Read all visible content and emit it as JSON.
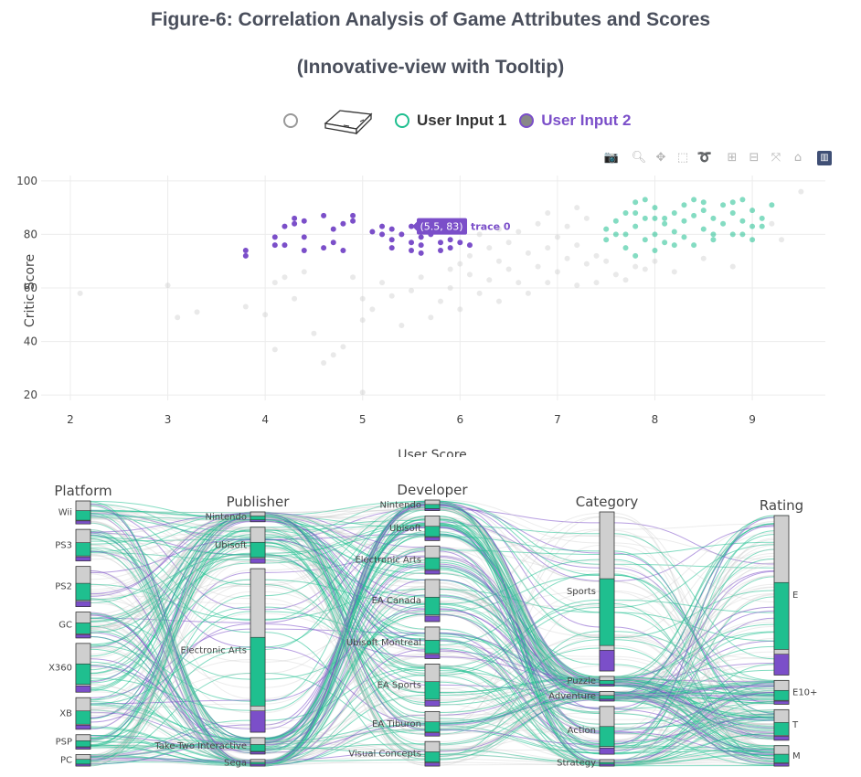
{
  "title_line1": "Figure-6: Correlation Analysis of Game Attributes and Scores",
  "title_line2": "(Innovative-view with Tooltip)",
  "legend": {
    "items": [
      {
        "label": "",
        "icon": "empty-circle-icon",
        "color": "#999999"
      },
      {
        "label": "",
        "icon": "eraser-icon",
        "color": "#444444"
      },
      {
        "label": "User Input 1",
        "icon": "teal-circle-icon",
        "color": "#1fbf8f"
      },
      {
        "label": "User Input 2",
        "icon": "purple-circle-icon",
        "color": "#7b4fc9"
      }
    ]
  },
  "toolbar": {
    "icons": [
      "camera-icon",
      "zoom-icon",
      "pan-icon",
      "box-select-icon",
      "lasso-select-icon",
      "zoom-in-icon",
      "zoom-out-icon",
      "autoscale-icon",
      "reset-axes-icon",
      "plotly-logo-icon"
    ]
  },
  "colors": {
    "teal": "#1fbf8f",
    "purple": "#7b4fc9",
    "gray": "#cfcfcf"
  },
  "tooltip": {
    "text": "(5.5, 83)",
    "trace": "trace 0"
  },
  "chart_data": [
    {
      "type": "scatter",
      "xlabel": "User Score",
      "ylabel": "Critic Score",
      "xlim": [
        1.7,
        9.75
      ],
      "ylim": [
        18,
        102
      ],
      "xticks": [
        2,
        3,
        4,
        5,
        6,
        7,
        8,
        9
      ],
      "yticks": [
        20,
        40,
        60,
        80,
        100
      ],
      "grid": true,
      "series": [
        {
          "color": "#7b4fc9",
          "points": [
            [
              3.8,
              72
            ],
            [
              3.8,
              74
            ],
            [
              4.1,
              79
            ],
            [
              4.1,
              76
            ],
            [
              4.2,
              83
            ],
            [
              4.2,
              76
            ],
            [
              4.3,
              84
            ],
            [
              4.3,
              86
            ],
            [
              4.4,
              74
            ],
            [
              4.4,
              79
            ],
            [
              4.4,
              85
            ],
            [
              4.6,
              87
            ],
            [
              4.6,
              75
            ],
            [
              4.7,
              77
            ],
            [
              4.7,
              82
            ],
            [
              4.8,
              74
            ],
            [
              4.8,
              84
            ],
            [
              4.9,
              87
            ],
            [
              4.9,
              85
            ],
            [
              5.1,
              81
            ],
            [
              5.2,
              83
            ],
            [
              5.2,
              80
            ],
            [
              5.3,
              78
            ],
            [
              5.3,
              75
            ],
            [
              5.3,
              82
            ],
            [
              5.4,
              80
            ],
            [
              5.5,
              74
            ],
            [
              5.5,
              77
            ],
            [
              5.5,
              83
            ],
            [
              5.6,
              79
            ],
            [
              5.6,
              76
            ],
            [
              5.6,
              73
            ],
            [
              5.7,
              85
            ],
            [
              5.7,
              80
            ],
            [
              5.8,
              77
            ],
            [
              5.8,
              74
            ],
            [
              5.9,
              78
            ],
            [
              5.9,
              75
            ],
            [
              6.0,
              81
            ],
            [
              6.0,
              77
            ],
            [
              6.1,
              76
            ]
          ]
        },
        {
          "color": "#1fbf8f",
          "points": [
            [
              7.5,
              82
            ],
            [
              7.5,
              78
            ],
            [
              7.6,
              85
            ],
            [
              7.7,
              75
            ],
            [
              7.7,
              88
            ],
            [
              7.7,
              80
            ],
            [
              7.8,
              83
            ],
            [
              7.8,
              72
            ],
            [
              7.8,
              92
            ],
            [
              7.9,
              78
            ],
            [
              7.9,
              86
            ],
            [
              8.0,
              80
            ],
            [
              8.0,
              90
            ],
            [
              8.0,
              74
            ],
            [
              8.1,
              84
            ],
            [
              8.1,
              77
            ],
            [
              8.2,
              88
            ],
            [
              8.2,
              81
            ],
            [
              8.3,
              79
            ],
            [
              8.3,
              91
            ],
            [
              8.3,
              85
            ],
            [
              8.4,
              76
            ],
            [
              8.4,
              87
            ],
            [
              8.5,
              82
            ],
            [
              8.5,
              89
            ],
            [
              8.6,
              78
            ],
            [
              8.6,
              86
            ],
            [
              8.7,
              84
            ],
            [
              8.7,
              91
            ],
            [
              8.8,
              80
            ],
            [
              8.8,
              88
            ],
            [
              8.9,
              85
            ],
            [
              8.9,
              93
            ],
            [
              9.0,
              83
            ],
            [
              9.0,
              89
            ],
            [
              9.0,
              78
            ],
            [
              9.1,
              86
            ],
            [
              9.2,
              91
            ],
            [
              7.6,
              80
            ],
            [
              7.9,
              93
            ],
            [
              8.1,
              86
            ],
            [
              8.4,
              93
            ],
            [
              8.6,
              80
            ],
            [
              8.8,
              92
            ],
            [
              8.2,
              76
            ],
            [
              7.8,
              88
            ],
            [
              8.5,
              92
            ],
            [
              8.9,
              80
            ],
            [
              9.1,
              83
            ],
            [
              8.0,
              86
            ]
          ]
        },
        {
          "color": "#cfcfcf",
          "points": [
            [
              2.1,
              58
            ],
            [
              3.0,
              61
            ],
            [
              3.1,
              49
            ],
            [
              3.3,
              51
            ],
            [
              3.8,
              53
            ],
            [
              4.0,
              50
            ],
            [
              4.1,
              37
            ],
            [
              4.1,
              62
            ],
            [
              4.2,
              64
            ],
            [
              4.3,
              56
            ],
            [
              4.4,
              66
            ],
            [
              4.5,
              43
            ],
            [
              4.6,
              32
            ],
            [
              4.7,
              35
            ],
            [
              4.8,
              38
            ],
            [
              4.9,
              64
            ],
            [
              5.0,
              56
            ],
            [
              5.0,
              48
            ],
            [
              5.0,
              21
            ],
            [
              5.1,
              52
            ],
            [
              5.2,
              62
            ],
            [
              5.3,
              57
            ],
            [
              5.4,
              46
            ],
            [
              5.5,
              59
            ],
            [
              5.6,
              64
            ],
            [
              5.7,
              49
            ],
            [
              5.8,
              55
            ],
            [
              5.9,
              60
            ],
            [
              6.0,
              69
            ],
            [
              6.0,
              52
            ],
            [
              6.1,
              72
            ],
            [
              6.2,
              58
            ],
            [
              6.2,
              80
            ],
            [
              6.3,
              75
            ],
            [
              6.3,
              63
            ],
            [
              6.4,
              70
            ],
            [
              6.4,
              55
            ],
            [
              6.5,
              77
            ],
            [
              6.5,
              67
            ],
            [
              6.6,
              62
            ],
            [
              6.6,
              81
            ],
            [
              6.7,
              73
            ],
            [
              6.7,
              58
            ],
            [
              6.8,
              68
            ],
            [
              6.8,
              84
            ],
            [
              6.9,
              75
            ],
            [
              6.9,
              62
            ],
            [
              7.0,
              79
            ],
            [
              7.0,
              66
            ],
            [
              7.1,
              71
            ],
            [
              7.1,
              83
            ],
            [
              7.2,
              61
            ],
            [
              7.2,
              76
            ],
            [
              7.3,
              69
            ],
            [
              7.3,
              86
            ],
            [
              7.4,
              72
            ],
            [
              7.4,
              62
            ],
            [
              7.5,
              70
            ],
            [
              7.6,
              65
            ],
            [
              7.7,
              63
            ],
            [
              7.8,
              68
            ],
            [
              7.9,
              67
            ],
            [
              8.0,
              70
            ],
            [
              8.2,
              66
            ],
            [
              8.5,
              71
            ],
            [
              8.8,
              68
            ],
            [
              9.2,
              84
            ],
            [
              9.3,
              78
            ],
            [
              9.5,
              96
            ],
            [
              6.1,
              65
            ],
            [
              6.4,
              82
            ],
            [
              6.9,
              88
            ],
            [
              7.2,
              90
            ],
            [
              5.9,
              67
            ]
          ]
        }
      ]
    },
    {
      "type": "parallel-categories",
      "dimensions": [
        {
          "label": "Platform",
          "categories": [
            "Wii",
            "PS3",
            "PS2",
            "GC",
            "X360",
            "XB",
            "PSP",
            "PC"
          ],
          "counts": [
            8,
            11,
            14,
            9,
            17,
            11,
            5,
            4
          ]
        },
        {
          "label": "Publisher",
          "categories": [
            "Nintendo",
            "Ubisoft",
            "Electronic Arts",
            "Take-Two Interactive",
            "Sega"
          ],
          "counts": [
            3,
            11,
            50,
            5,
            2
          ]
        },
        {
          "label": "Developer",
          "categories": [
            "Nintendo",
            "Ubisoft",
            "Electronic Arts",
            "EA Canada",
            "Ubisoft Montreal",
            "EA Sports",
            "EA Tiburon",
            "Visual Concepts"
          ],
          "counts": [
            3,
            7,
            8,
            12,
            9,
            12,
            7,
            7
          ]
        },
        {
          "label": "Category",
          "categories": [
            "Sports",
            "Puzzle",
            "Adventure",
            "Action",
            "Strategy"
          ],
          "counts": [
            50,
            3,
            3,
            15,
            2
          ]
        },
        {
          "label": "Rating",
          "categories": [
            "E",
            "E10+",
            "T",
            "M"
          ],
          "counts": [
            47,
            7,
            9,
            6
          ]
        }
      ]
    }
  ]
}
